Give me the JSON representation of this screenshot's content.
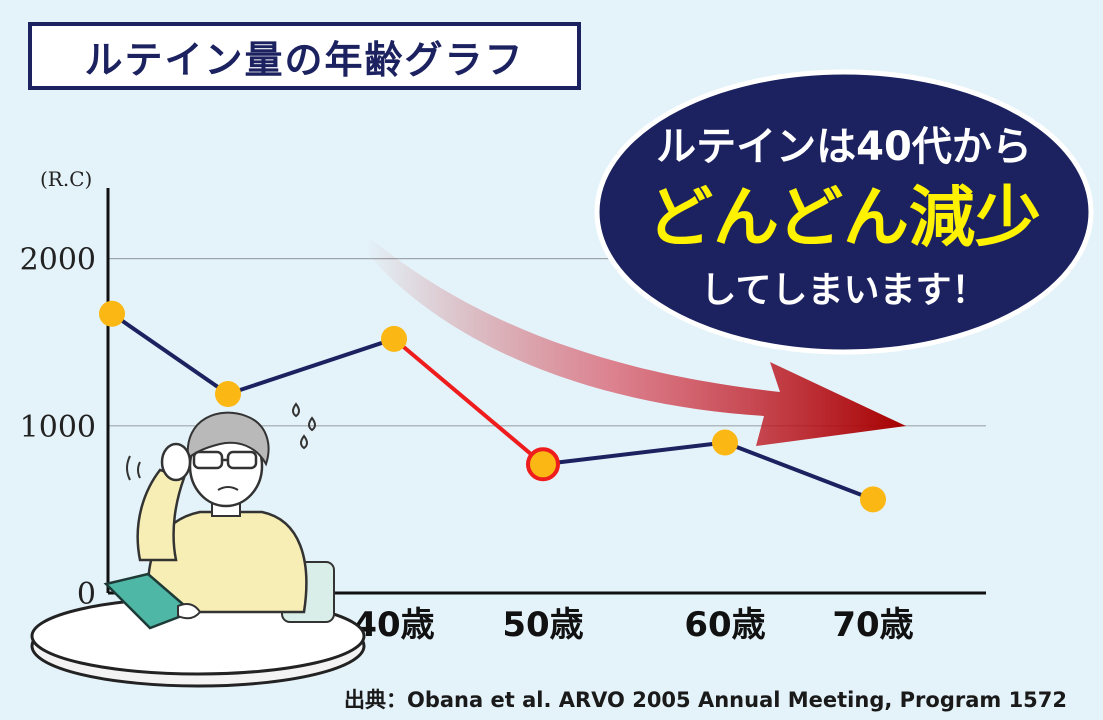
{
  "title": "ルテイン量の年齢グラフ",
  "source": "出典：Obana et al. ARVO 2005 Annual Meeting, Program 1572",
  "callout": {
    "line1": "ルテインは40代から",
    "line2": "どんどん減少",
    "line3": "してしまいます！"
  },
  "colors": {
    "line": "#1c2260",
    "highlight_line": "#ee1c1c",
    "marker": "#fbb714",
    "title_border": "#1c2260",
    "callout_bg": "#1c2260",
    "callout_accent": "#fff200",
    "arrow": "#b40d0d"
  },
  "chart_data": {
    "type": "line",
    "ylabel": "(R.C)",
    "ylim": [
      0,
      2500
    ],
    "yticks": [
      0,
      1000,
      2000
    ],
    "grid": true,
    "categories": [
      "",
      "",
      "40歳",
      "50歳",
      "60歳",
      "70歳"
    ],
    "series": [
      {
        "values": [
          1670,
          1190,
          1520,
          770,
          900,
          560
        ]
      }
    ],
    "highlight_segment": {
      "from": 2,
      "to": 3
    },
    "highlight_point": 3
  }
}
